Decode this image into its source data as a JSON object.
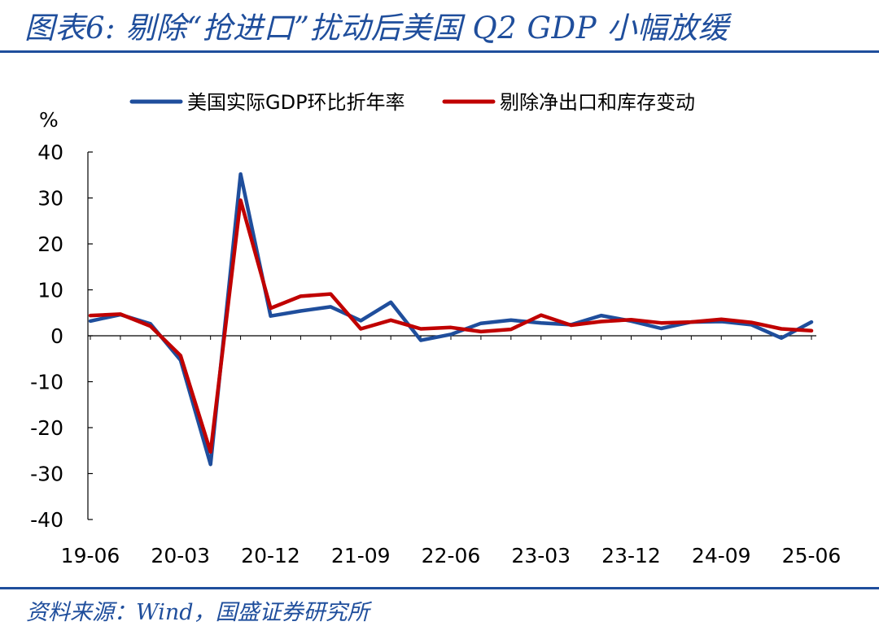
{
  "figure": {
    "title": "图表6:  剔除“抢进口”扰动后美国 Q2 GDP 小幅放缓",
    "source": "资料来源：Wind，国盛证券研究所"
  },
  "chart_data": {
    "type": "line",
    "unit_label": "%",
    "ylim": [
      -40,
      40
    ],
    "yticks": [
      -40,
      -30,
      -20,
      -10,
      0,
      10,
      20,
      30,
      40
    ],
    "x": [
      "19-06",
      "19-09",
      "19-12",
      "20-03",
      "20-06",
      "20-09",
      "20-12",
      "21-03",
      "21-06",
      "21-09",
      "21-12",
      "22-03",
      "22-06",
      "22-09",
      "22-12",
      "23-03",
      "23-06",
      "23-09",
      "23-12",
      "24-03",
      "24-06",
      "24-09",
      "24-12",
      "25-03",
      "25-06"
    ],
    "xtick_labels": [
      "19-06",
      "20-03",
      "20-12",
      "21-09",
      "22-06",
      "23-03",
      "23-12",
      "24-09",
      "25-06"
    ],
    "legend_position": "top",
    "grid": false,
    "series": [
      {
        "name": "美国实际GDP环比折年率",
        "color": "#1f4e9c",
        "values": [
          3.2,
          4.6,
          2.6,
          -5.3,
          -28.0,
          35.2,
          4.3,
          5.4,
          6.3,
          3.3,
          7.3,
          -1.0,
          0.3,
          2.7,
          3.4,
          2.8,
          2.4,
          4.4,
          3.2,
          1.6,
          3.0,
          3.1,
          2.4,
          -0.5,
          3.0
        ]
      },
      {
        "name": "剔除净出口和库存变动",
        "color": "#c00000",
        "values": [
          4.4,
          4.7,
          2.1,
          -4.3,
          -25.3,
          29.5,
          6.0,
          8.6,
          9.1,
          1.5,
          3.4,
          1.5,
          1.8,
          0.9,
          1.4,
          4.5,
          2.3,
          3.1,
          3.5,
          2.8,
          3.0,
          3.6,
          2.9,
          1.5,
          1.1
        ]
      }
    ]
  }
}
